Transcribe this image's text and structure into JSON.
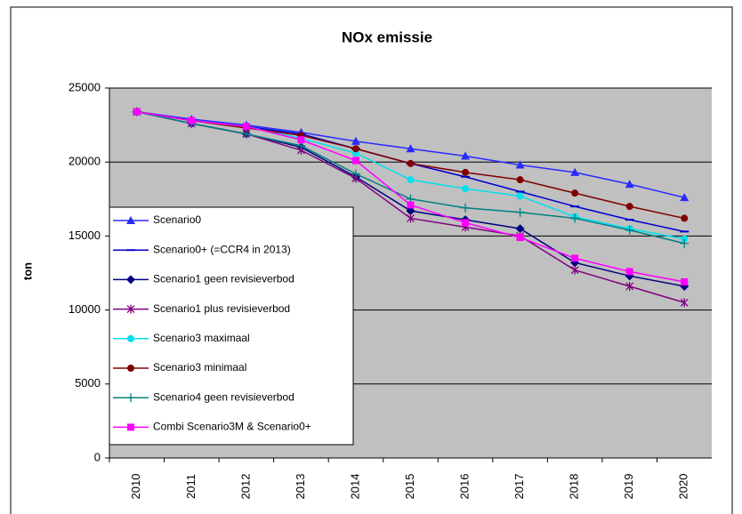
{
  "chart_data": {
    "type": "line",
    "title": "NOx emissie",
    "y_label": "ton",
    "categories": [
      "2010",
      "2011",
      "2012",
      "2013",
      "2014",
      "2015",
      "2016",
      "2017",
      "2018",
      "2019",
      "2020"
    ],
    "ylim": [
      0,
      25000
    ],
    "yticks": [
      0,
      5000,
      10000,
      15000,
      20000,
      25000
    ],
    "grid": true,
    "series": [
      {
        "name": "Scenario0",
        "color": "#2a2aff",
        "marker": "triangle",
        "values": [
          23400,
          22900,
          22500,
          22000,
          21400,
          20900,
          20400,
          19800,
          19300,
          18500,
          17600
        ]
      },
      {
        "name": "Scenario0+ (=CCR4 in 2013)",
        "color": "#0000cc",
        "marker": "dash",
        "values": [
          23400,
          22800,
          22400,
          21900,
          20900,
          19900,
          19000,
          18000,
          17000,
          16100,
          15300
        ]
      },
      {
        "name": "Scenario1 geen revisieverbod",
        "color": "#000080",
        "marker": "diamond",
        "values": [
          23400,
          22600,
          21900,
          21000,
          19000,
          16700,
          16100,
          15500,
          13200,
          12300,
          11600
        ]
      },
      {
        "name": "Scenario1 plus revisieverbod",
        "color": "#800080",
        "marker": "star",
        "values": [
          23400,
          22600,
          21900,
          20800,
          18900,
          16200,
          15600,
          15000,
          12700,
          11600,
          10500
        ]
      },
      {
        "name": "Scenario3 maximaal",
        "color": "#00e0f0",
        "marker": "circle",
        "values": [
          23400,
          22800,
          22400,
          21600,
          20600,
          18800,
          18200,
          17700,
          16300,
          15500,
          14800
        ]
      },
      {
        "name": "Scenario3 minimaal",
        "color": "#800000",
        "marker": "circle",
        "values": [
          23400,
          22800,
          22300,
          21800,
          20900,
          19900,
          19300,
          18800,
          17900,
          17000,
          16200
        ]
      },
      {
        "name": "Scenario4 geen revisieverbod",
        "color": "#008080",
        "marker": "plus",
        "values": [
          23400,
          22600,
          21900,
          21100,
          19200,
          17500,
          16900,
          16600,
          16200,
          15400,
          14500
        ]
      },
      {
        "name": "Combi Scenario3M & Scenario0+",
        "color": "#ff00ff",
        "marker": "square",
        "values": [
          23400,
          22800,
          22400,
          21500,
          20100,
          17100,
          15900,
          14900,
          13500,
          12600,
          11900
        ]
      }
    ]
  }
}
